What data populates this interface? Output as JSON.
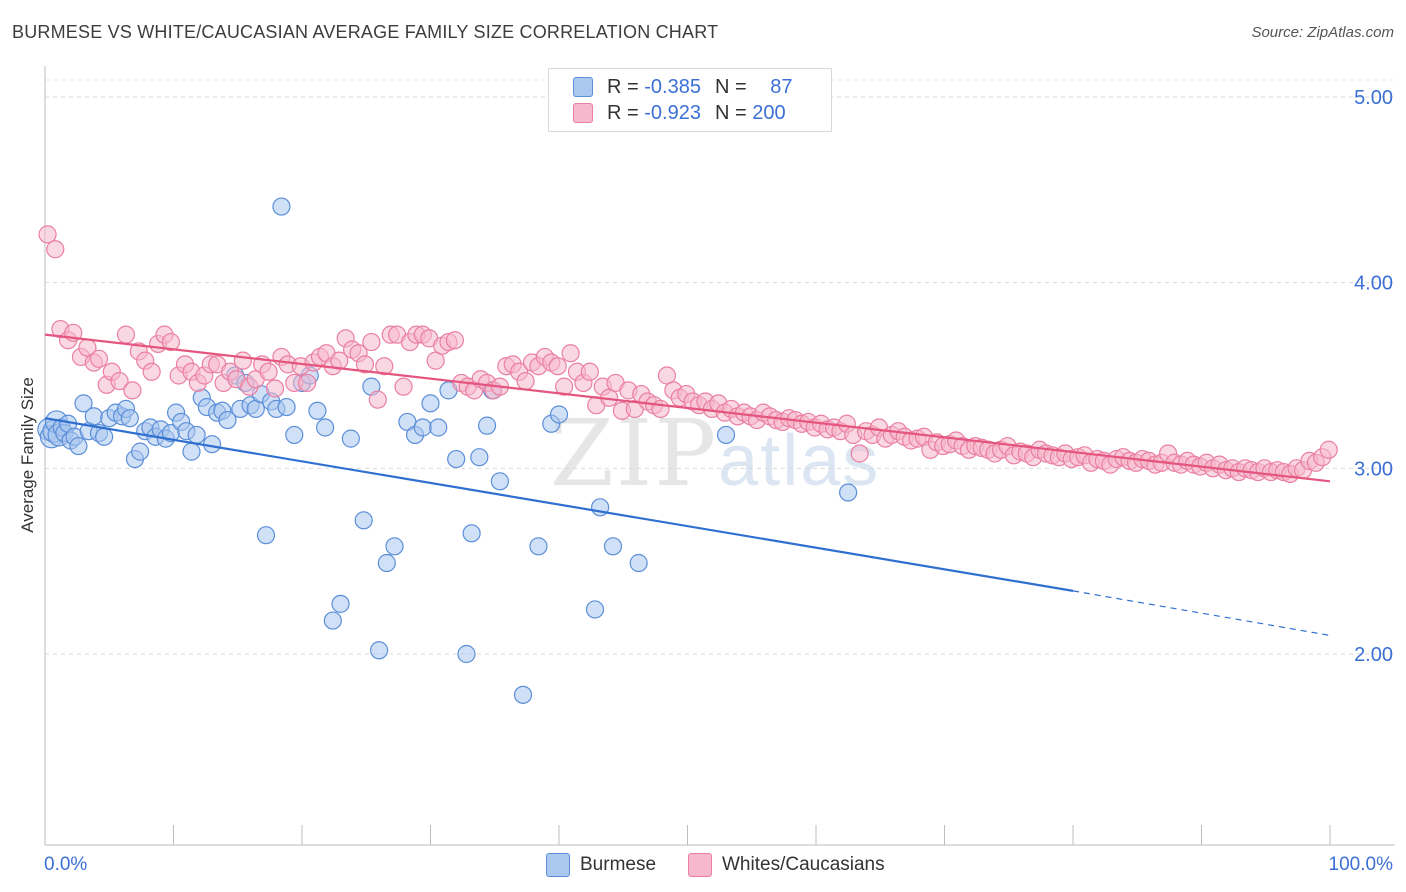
{
  "title": "BURMESE VS WHITE/CAUCASIAN AVERAGE FAMILY SIZE CORRELATION CHART",
  "source": "Source: ZipAtlas.com",
  "watermark": {
    "zip": "ZIP",
    "atlas": "atlas"
  },
  "legend": {
    "rows": [
      {
        "r_label": "R =",
        "r_value": "-0.385",
        "n_label": "N =",
        "n_value": "87",
        "color": "#a9c7ef"
      },
      {
        "r_label": "R =",
        "r_value": "-0.923",
        "n_label": "N =",
        "n_value": "200",
        "color": "#f6b8cc"
      }
    ]
  },
  "bottom_legend": [
    {
      "label": "Burmese",
      "color": "#a9c7ef"
    },
    {
      "label": "Whites/Caucasians",
      "color": "#f6b8cc"
    }
  ],
  "chart_data": {
    "type": "scatter",
    "title": "BURMESE VS WHITE/CAUCASIAN AVERAGE FAMILY SIZE CORRELATION CHART",
    "xlabel": "",
    "ylabel": "Average Family Size",
    "xlim": [
      0,
      100
    ],
    "ylim": [
      1.0,
      5.1
    ],
    "x_tick_labels": [
      "0.0%",
      "100.0%"
    ],
    "y_ticks": [
      2.0,
      3.0,
      4.0,
      5.0
    ],
    "y_tick_labels": [
      "2.00",
      "3.00",
      "4.00",
      "5.00"
    ],
    "grid": true,
    "series": [
      {
        "name": "Burmese",
        "color": "#5b8fd9",
        "fill": "#a9c7ef",
        "trend": {
          "x0": 0,
          "y0": 3.27,
          "x1": 80,
          "y1": 2.34,
          "dashed_to_x": 100,
          "dashed_to_y": 2.1,
          "color": "#2f6fd0"
        },
        "points": [
          [
            0.3,
            3.21
          ],
          [
            0.5,
            3.17
          ],
          [
            0.7,
            3.2
          ],
          [
            0.9,
            3.25
          ],
          [
            1.1,
            3.18
          ],
          [
            1.3,
            3.22
          ],
          [
            1.5,
            3.19
          ],
          [
            1.8,
            3.24
          ],
          [
            2.0,
            3.15
          ],
          [
            2.3,
            3.17
          ],
          [
            2.6,
            3.12
          ],
          [
            3.0,
            3.35
          ],
          [
            3.4,
            3.2
          ],
          [
            3.8,
            3.28
          ],
          [
            4.2,
            3.19
          ],
          [
            4.6,
            3.17
          ],
          [
            5.0,
            3.27
          ],
          [
            5.5,
            3.3
          ],
          [
            6.0,
            3.28
          ],
          [
            6.3,
            3.32
          ],
          [
            6.6,
            3.27
          ],
          [
            7.0,
            3.05
          ],
          [
            7.4,
            3.09
          ],
          [
            7.8,
            3.2
          ],
          [
            8.2,
            3.22
          ],
          [
            8.6,
            3.17
          ],
          [
            9.0,
            3.21
          ],
          [
            9.4,
            3.16
          ],
          [
            9.8,
            3.19
          ],
          [
            10.2,
            3.3
          ],
          [
            10.6,
            3.25
          ],
          [
            11.0,
            3.2
          ],
          [
            11.4,
            3.09
          ],
          [
            11.8,
            3.18
          ],
          [
            12.2,
            3.38
          ],
          [
            12.6,
            3.33
          ],
          [
            13.0,
            3.13
          ],
          [
            13.4,
            3.3
          ],
          [
            13.8,
            3.31
          ],
          [
            14.2,
            3.26
          ],
          [
            14.8,
            3.5
          ],
          [
            15.2,
            3.32
          ],
          [
            15.6,
            3.46
          ],
          [
            16.0,
            3.34
          ],
          [
            16.4,
            3.32
          ],
          [
            16.8,
            3.4
          ],
          [
            17.2,
            2.64
          ],
          [
            17.6,
            3.36
          ],
          [
            18.0,
            3.32
          ],
          [
            18.4,
            4.41
          ],
          [
            18.8,
            3.33
          ],
          [
            19.4,
            3.18
          ],
          [
            20.0,
            3.46
          ],
          [
            20.6,
            3.5
          ],
          [
            21.2,
            3.31
          ],
          [
            21.8,
            3.22
          ],
          [
            22.4,
            2.18
          ],
          [
            23.0,
            2.27
          ],
          [
            23.8,
            3.16
          ],
          [
            24.8,
            2.72
          ],
          [
            25.4,
            3.44
          ],
          [
            26.0,
            2.02
          ],
          [
            26.6,
            2.49
          ],
          [
            27.2,
            2.58
          ],
          [
            28.2,
            3.25
          ],
          [
            28.8,
            3.18
          ],
          [
            29.4,
            3.22
          ],
          [
            30.0,
            3.35
          ],
          [
            30.6,
            3.22
          ],
          [
            31.4,
            3.42
          ],
          [
            32.0,
            3.05
          ],
          [
            32.8,
            2.0
          ],
          [
            33.2,
            2.65
          ],
          [
            33.8,
            3.06
          ],
          [
            34.4,
            3.23
          ],
          [
            34.8,
            3.42
          ],
          [
            35.4,
            2.93
          ],
          [
            37.2,
            1.78
          ],
          [
            38.4,
            2.58
          ],
          [
            39.4,
            3.24
          ],
          [
            40.0,
            3.29
          ],
          [
            42.8,
            2.24
          ],
          [
            43.2,
            2.79
          ],
          [
            44.2,
            2.58
          ],
          [
            46.2,
            2.49
          ],
          [
            53.0,
            3.18
          ],
          [
            62.5,
            2.87
          ]
        ]
      },
      {
        "name": "Whites/Caucasians",
        "color": "#ea7fa3",
        "fill": "#f6b8cc",
        "trend": {
          "x0": 0,
          "y0": 3.72,
          "x1": 100,
          "y1": 2.93,
          "color": "#e4557f"
        },
        "points": [
          [
            0.2,
            4.26
          ],
          [
            0.8,
            4.18
          ],
          [
            1.2,
            3.75
          ],
          [
            1.8,
            3.69
          ],
          [
            2.2,
            3.73
          ],
          [
            2.8,
            3.6
          ],
          [
            3.3,
            3.65
          ],
          [
            3.8,
            3.57
          ],
          [
            4.2,
            3.59
          ],
          [
            4.8,
            3.45
          ],
          [
            5.2,
            3.52
          ],
          [
            5.8,
            3.47
          ],
          [
            6.3,
            3.72
          ],
          [
            6.8,
            3.42
          ],
          [
            7.3,
            3.63
          ],
          [
            7.8,
            3.58
          ],
          [
            8.3,
            3.52
          ],
          [
            8.8,
            3.67
          ],
          [
            9.3,
            3.72
          ],
          [
            9.8,
            3.68
          ],
          [
            10.4,
            3.5
          ],
          [
            10.9,
            3.56
          ],
          [
            11.4,
            3.52
          ],
          [
            11.9,
            3.46
          ],
          [
            12.4,
            3.5
          ],
          [
            12.9,
            3.56
          ],
          [
            13.4,
            3.56
          ],
          [
            13.9,
            3.46
          ],
          [
            14.4,
            3.52
          ],
          [
            14.9,
            3.48
          ],
          [
            15.4,
            3.58
          ],
          [
            15.9,
            3.44
          ],
          [
            16.4,
            3.48
          ],
          [
            16.9,
            3.56
          ],
          [
            17.4,
            3.52
          ],
          [
            17.9,
            3.43
          ],
          [
            18.4,
            3.6
          ],
          [
            18.9,
            3.56
          ],
          [
            19.4,
            3.46
          ],
          [
            19.9,
            3.55
          ],
          [
            20.4,
            3.46
          ],
          [
            20.9,
            3.57
          ],
          [
            21.4,
            3.6
          ],
          [
            21.9,
            3.62
          ],
          [
            22.4,
            3.55
          ],
          [
            22.9,
            3.58
          ],
          [
            23.4,
            3.7
          ],
          [
            23.9,
            3.64
          ],
          [
            24.4,
            3.62
          ],
          [
            24.9,
            3.56
          ],
          [
            25.4,
            3.68
          ],
          [
            25.9,
            3.37
          ],
          [
            26.4,
            3.55
          ],
          [
            26.9,
            3.72
          ],
          [
            27.4,
            3.72
          ],
          [
            27.9,
            3.44
          ],
          [
            28.4,
            3.68
          ],
          [
            28.9,
            3.72
          ],
          [
            29.4,
            3.72
          ],
          [
            29.9,
            3.7
          ],
          [
            30.4,
            3.58
          ],
          [
            30.9,
            3.66
          ],
          [
            31.4,
            3.68
          ],
          [
            31.9,
            3.69
          ],
          [
            32.4,
            3.46
          ],
          [
            32.9,
            3.44
          ],
          [
            33.4,
            3.42
          ],
          [
            33.9,
            3.48
          ],
          [
            34.4,
            3.46
          ],
          [
            34.9,
            3.42
          ],
          [
            35.4,
            3.44
          ],
          [
            35.9,
            3.55
          ],
          [
            36.4,
            3.56
          ],
          [
            36.9,
            3.52
          ],
          [
            37.4,
            3.47
          ],
          [
            37.9,
            3.57
          ],
          [
            38.4,
            3.55
          ],
          [
            38.9,
            3.6
          ],
          [
            39.4,
            3.57
          ],
          [
            39.9,
            3.55
          ],
          [
            40.4,
            3.44
          ],
          [
            40.9,
            3.62
          ],
          [
            41.4,
            3.52
          ],
          [
            41.9,
            3.46
          ],
          [
            42.4,
            3.52
          ],
          [
            42.9,
            3.34
          ],
          [
            43.4,
            3.44
          ],
          [
            43.9,
            3.38
          ],
          [
            44.4,
            3.46
          ],
          [
            44.9,
            3.31
          ],
          [
            45.4,
            3.42
          ],
          [
            45.9,
            3.32
          ],
          [
            46.4,
            3.4
          ],
          [
            46.9,
            3.36
          ],
          [
            47.4,
            3.34
          ],
          [
            47.9,
            3.32
          ],
          [
            48.4,
            3.5
          ],
          [
            48.9,
            3.42
          ],
          [
            49.4,
            3.38
          ],
          [
            49.9,
            3.4
          ],
          [
            50.4,
            3.36
          ],
          [
            50.9,
            3.34
          ],
          [
            51.4,
            3.36
          ],
          [
            51.9,
            3.32
          ],
          [
            52.4,
            3.35
          ],
          [
            52.9,
            3.3
          ],
          [
            53.4,
            3.32
          ],
          [
            53.9,
            3.28
          ],
          [
            54.4,
            3.3
          ],
          [
            54.9,
            3.28
          ],
          [
            55.4,
            3.26
          ],
          [
            55.9,
            3.3
          ],
          [
            56.4,
            3.28
          ],
          [
            56.9,
            3.26
          ],
          [
            57.4,
            3.25
          ],
          [
            57.9,
            3.27
          ],
          [
            58.4,
            3.26
          ],
          [
            58.9,
            3.24
          ],
          [
            59.4,
            3.25
          ],
          [
            59.9,
            3.22
          ],
          [
            60.4,
            3.24
          ],
          [
            60.9,
            3.21
          ],
          [
            61.4,
            3.22
          ],
          [
            61.9,
            3.2
          ],
          [
            62.4,
            3.24
          ],
          [
            62.9,
            3.18
          ],
          [
            63.4,
            3.08
          ],
          [
            63.9,
            3.2
          ],
          [
            64.4,
            3.18
          ],
          [
            64.9,
            3.22
          ],
          [
            65.4,
            3.16
          ],
          [
            65.9,
            3.18
          ],
          [
            66.4,
            3.2
          ],
          [
            66.9,
            3.17
          ],
          [
            67.4,
            3.15
          ],
          [
            67.9,
            3.16
          ],
          [
            68.4,
            3.17
          ],
          [
            68.9,
            3.1
          ],
          [
            69.4,
            3.14
          ],
          [
            69.9,
            3.12
          ],
          [
            70.4,
            3.13
          ],
          [
            70.9,
            3.15
          ],
          [
            71.4,
            3.12
          ],
          [
            71.9,
            3.1
          ],
          [
            72.4,
            3.12
          ],
          [
            72.9,
            3.11
          ],
          [
            73.4,
            3.1
          ],
          [
            73.9,
            3.08
          ],
          [
            74.4,
            3.1
          ],
          [
            74.9,
            3.12
          ],
          [
            75.4,
            3.07
          ],
          [
            75.9,
            3.09
          ],
          [
            76.4,
            3.08
          ],
          [
            76.9,
            3.06
          ],
          [
            77.4,
            3.1
          ],
          [
            77.9,
            3.08
          ],
          [
            78.4,
            3.07
          ],
          [
            78.9,
            3.06
          ],
          [
            79.4,
            3.08
          ],
          [
            79.9,
            3.05
          ],
          [
            80.4,
            3.06
          ],
          [
            80.9,
            3.07
          ],
          [
            81.4,
            3.03
          ],
          [
            81.9,
            3.05
          ],
          [
            82.4,
            3.04
          ],
          [
            82.9,
            3.02
          ],
          [
            83.4,
            3.05
          ],
          [
            83.9,
            3.06
          ],
          [
            84.4,
            3.04
          ],
          [
            84.9,
            3.03
          ],
          [
            85.4,
            3.05
          ],
          [
            85.9,
            3.04
          ],
          [
            86.4,
            3.02
          ],
          [
            86.9,
            3.03
          ],
          [
            87.4,
            3.08
          ],
          [
            87.9,
            3.03
          ],
          [
            88.4,
            3.02
          ],
          [
            88.9,
            3.04
          ],
          [
            89.4,
            3.02
          ],
          [
            89.9,
            3.01
          ],
          [
            90.4,
            3.03
          ],
          [
            90.9,
            3.0
          ],
          [
            91.4,
            3.02
          ],
          [
            91.9,
            2.99
          ],
          [
            92.4,
            3.0
          ],
          [
            92.9,
            2.98
          ],
          [
            93.4,
            3.0
          ],
          [
            93.9,
            2.99
          ],
          [
            94.4,
            2.98
          ],
          [
            94.9,
            3.0
          ],
          [
            95.4,
            2.98
          ],
          [
            95.9,
            2.99
          ],
          [
            96.4,
            2.98
          ],
          [
            96.9,
            2.97
          ],
          [
            97.4,
            3.0
          ],
          [
            97.9,
            2.99
          ],
          [
            98.4,
            3.04
          ],
          [
            98.9,
            3.03
          ],
          [
            99.4,
            3.06
          ],
          [
            99.9,
            3.1
          ]
        ]
      }
    ]
  }
}
